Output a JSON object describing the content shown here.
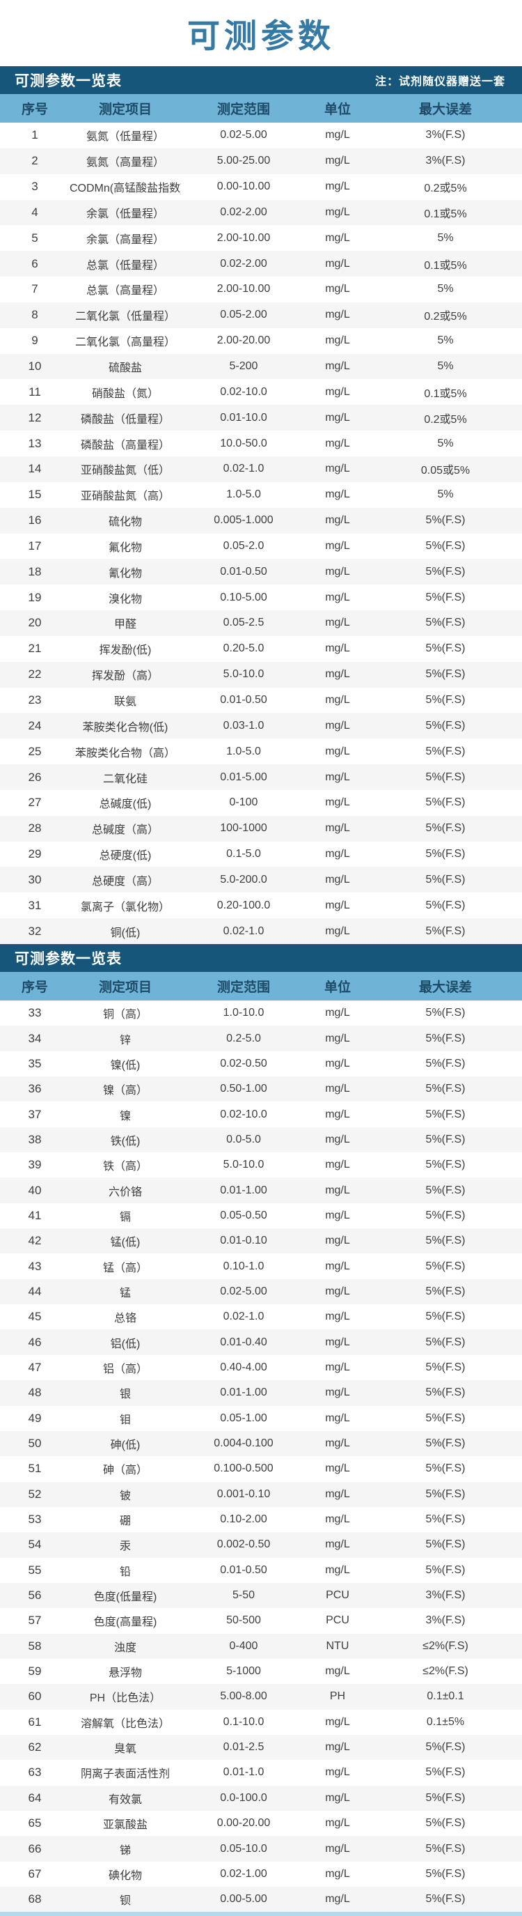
{
  "page_title": "可测参数",
  "theme": {
    "title_color": "#3579a5",
    "section_bar_color": "#16567b",
    "section_bar_text_color": "#ffffff",
    "column_header_bg": "#6fb3d7",
    "column_header_text": "#1d4a67",
    "row_text_color": "#3d3d3d",
    "row_alt_bg": "#f5f5f5",
    "bottom_strip_color": "#b3d9ea"
  },
  "tables": [
    {
      "header": "可测参数一览表",
      "note": "注：试剂随仪器赠送一套",
      "columns": [
        "序号",
        "测定项目",
        "测定范围",
        "单位",
        "最大误差"
      ],
      "rows": [
        [
          "1",
          "氨氮（低量程）",
          "0.02-5.00",
          "mg/L",
          "3%(F.S)"
        ],
        [
          "2",
          "氨氮（高量程）",
          "5.00-25.00",
          "mg/L",
          "3%(F.S)"
        ],
        [
          "3",
          "CODMn(高锰酸盐指数)",
          "0.00-10.00",
          "mg/L",
          "0.2或5%"
        ],
        [
          "4",
          "余氯（低量程）",
          "0.02-2.00",
          "mg/L",
          "0.1或5%"
        ],
        [
          "5",
          "余氯（高量程）",
          "2.00-10.00",
          "mg/L",
          "5%"
        ],
        [
          "6",
          "总氯（低量程）",
          "0.02-2.00",
          "mg/L",
          "0.1或5%"
        ],
        [
          "7",
          "总氯（高量程）",
          "2.00-10.00",
          "mg/L",
          "5%"
        ],
        [
          "8",
          "二氧化氯（低量程）",
          "0.05-2.00",
          "mg/L",
          "0.2或5%"
        ],
        [
          "9",
          "二氧化氯（高量程）",
          "2.00-20.00",
          "mg/L",
          "5%"
        ],
        [
          "10",
          "硫酸盐",
          "5-200",
          "mg/L",
          "5%"
        ],
        [
          "11",
          "硝酸盐（氮）",
          "0.02-10.0",
          "mg/L",
          "0.1或5%"
        ],
        [
          "12",
          "磷酸盐（低量程）",
          "0.01-10.0",
          "mg/L",
          "0.2或5%"
        ],
        [
          "13",
          "磷酸盐（高量程）",
          "10.0-50.0",
          "mg/L",
          "5%"
        ],
        [
          "14",
          "亚硝酸盐氮（低）",
          "0.02-1.0",
          "mg/L",
          "0.05或5%"
        ],
        [
          "15",
          "亚硝酸盐氮（高）",
          "1.0-5.0",
          "mg/L",
          "5%"
        ],
        [
          "16",
          "硫化物",
          "0.005-1.000",
          "mg/L",
          "5%(F.S)"
        ],
        [
          "17",
          "氟化物",
          "0.05-2.0",
          "mg/L",
          "5%(F.S)"
        ],
        [
          "18",
          "氰化物",
          "0.01-0.50",
          "mg/L",
          "5%(F.S)"
        ],
        [
          "19",
          "溴化物",
          "0.10-5.00",
          "mg/L",
          "5%(F.S)"
        ],
        [
          "20",
          "甲醛",
          "0.05-2.5",
          "mg/L",
          "5%(F.S)"
        ],
        [
          "21",
          "挥发酚(低)",
          "0.20-5.0",
          "mg/L",
          "5%(F.S)"
        ],
        [
          "22",
          "挥发酚（高）",
          "5.0-10.0",
          "mg/L",
          "5%(F.S)"
        ],
        [
          "23",
          "联氨",
          "0.01-0.50",
          "mg/L",
          "5%(F.S)"
        ],
        [
          "24",
          "苯胺类化合物(低)",
          "0.03-1.0",
          "mg/L",
          "5%(F.S)"
        ],
        [
          "25",
          "苯胺类化合物（高）",
          "1.0-5.0",
          "mg/L",
          "5%(F.S)"
        ],
        [
          "26",
          "二氧化硅",
          "0.01-5.00",
          "mg/L",
          "5%(F.S)"
        ],
        [
          "27",
          "总碱度(低)",
          "0-100",
          "mg/L",
          "5%(F.S)"
        ],
        [
          "28",
          "总碱度（高）",
          "100-1000",
          "mg/L",
          "5%(F.S)"
        ],
        [
          "29",
          "总硬度(低)",
          "0.1-5.0",
          "mg/L",
          "5%(F.S)"
        ],
        [
          "30",
          "总硬度（高）",
          "5.0-200.0",
          "mg/L",
          "5%(F.S)"
        ],
        [
          "31",
          "氯离子（氯化物）",
          "0.20-100.0",
          "mg/L",
          "5%(F.S)"
        ],
        [
          "32",
          "铜(低)",
          "0.02-1.0",
          "mg/L",
          "5%(F.S)"
        ]
      ]
    },
    {
      "header": "可测参数一览表",
      "note": "",
      "columns": [
        "序号",
        "测定项目",
        "测定范围",
        "单位",
        "最大误差"
      ],
      "rows": [
        [
          "33",
          "铜（高）",
          "1.0-10.0",
          "mg/L",
          "5%(F.S)"
        ],
        [
          "34",
          "锌",
          "0.2-5.0",
          "mg/L",
          "5%(F.S)"
        ],
        [
          "35",
          "镍(低)",
          "0.02-0.50",
          "mg/L",
          "5%(F.S)"
        ],
        [
          "36",
          "镍（高）",
          "0.50-1.00",
          "mg/L",
          "5%(F.S)"
        ],
        [
          "37",
          "镍",
          "0.02-10.0",
          "mg/L",
          "5%(F.S)"
        ],
        [
          "38",
          "铁(低)",
          "0.0-5.0",
          "mg/L",
          "5%(F.S)"
        ],
        [
          "39",
          "铁（高）",
          "5.0-10.0",
          "mg/L",
          "5%(F.S)"
        ],
        [
          "40",
          "六价铬",
          "0.01-1.00",
          "mg/L",
          "5%(F.S)"
        ],
        [
          "41",
          "镉",
          "0.05-0.50",
          "mg/L",
          "5%(F.S)"
        ],
        [
          "42",
          "锰(低)",
          "0.01-0.10",
          "mg/L",
          "5%(F.S)"
        ],
        [
          "43",
          "锰（高）",
          "0.10-1.0",
          "mg/L",
          "5%(F.S)"
        ],
        [
          "44",
          "锰",
          "0.02-5.00",
          "mg/L",
          "5%(F.S)"
        ],
        [
          "45",
          "总铬",
          "0.02-1.0",
          "mg/L",
          "5%(F.S)"
        ],
        [
          "46",
          "铝(低)",
          "0.01-0.40",
          "mg/L",
          "5%(F.S)"
        ],
        [
          "47",
          "铝（高）",
          "0.40-4.00",
          "mg/L",
          "5%(F.S)"
        ],
        [
          "48",
          "银",
          "0.01-1.00",
          "mg/L",
          "5%(F.S)"
        ],
        [
          "49",
          "钼",
          "0.05-1.00",
          "mg/L",
          "5%(F.S)"
        ],
        [
          "50",
          "砷(低)",
          "0.004-0.100",
          "mg/L",
          "5%(F.S)"
        ],
        [
          "51",
          "砷（高）",
          "0.100-0.500",
          "mg/L",
          "5%(F.S)"
        ],
        [
          "52",
          "铍",
          "0.001-0.10",
          "mg/L",
          "5%(F.S)"
        ],
        [
          "53",
          "硼",
          "0.10-2.00",
          "mg/L",
          "5%(F.S)"
        ],
        [
          "54",
          "汞",
          "0.002-0.50",
          "mg/L",
          "5%(F.S)"
        ],
        [
          "55",
          "铅",
          "0.01-0.50",
          "mg/L",
          "5%(F.S)"
        ],
        [
          "56",
          "色度(低量程)",
          "5-50",
          "PCU",
          "3%(F.S)"
        ],
        [
          "57",
          "色度(高量程)",
          "50-500",
          "PCU",
          "3%(F.S)"
        ],
        [
          "58",
          "浊度",
          "0-400",
          "NTU",
          "≤2%(F.S)"
        ],
        [
          "59",
          "悬浮物",
          "5-1000",
          "mg/L",
          "≤2%(F.S)"
        ],
        [
          "60",
          "PH（比色法）",
          "5.00-8.00",
          "PH",
          "0.1±0.1"
        ],
        [
          "61",
          "溶解氧（比色法）",
          "0.1-10.0",
          "mg/L",
          "0.1±5%"
        ],
        [
          "62",
          "臭氧",
          "0.01-2.5",
          "mg/L",
          "5%(F.S)"
        ],
        [
          "63",
          "阴离子表面活性剂",
          "0.01-1.0",
          "mg/L",
          "5%(F.S)"
        ],
        [
          "64",
          "有效氯",
          "0.0-100.0",
          "mg/L",
          "5%(F.S)"
        ],
        [
          "65",
          "亚氯酸盐",
          "0.00-20.00",
          "mg/L",
          "5%(F.S)"
        ],
        [
          "66",
          "锑",
          "0.05-10.0",
          "mg/L",
          "5%(F.S)"
        ],
        [
          "67",
          "碘化物",
          "0.02-1.00",
          "mg/L",
          "5%(F.S)"
        ],
        [
          "68",
          "钡",
          "0.00-5.00",
          "mg/L",
          "5%(F.S)"
        ]
      ]
    }
  ]
}
